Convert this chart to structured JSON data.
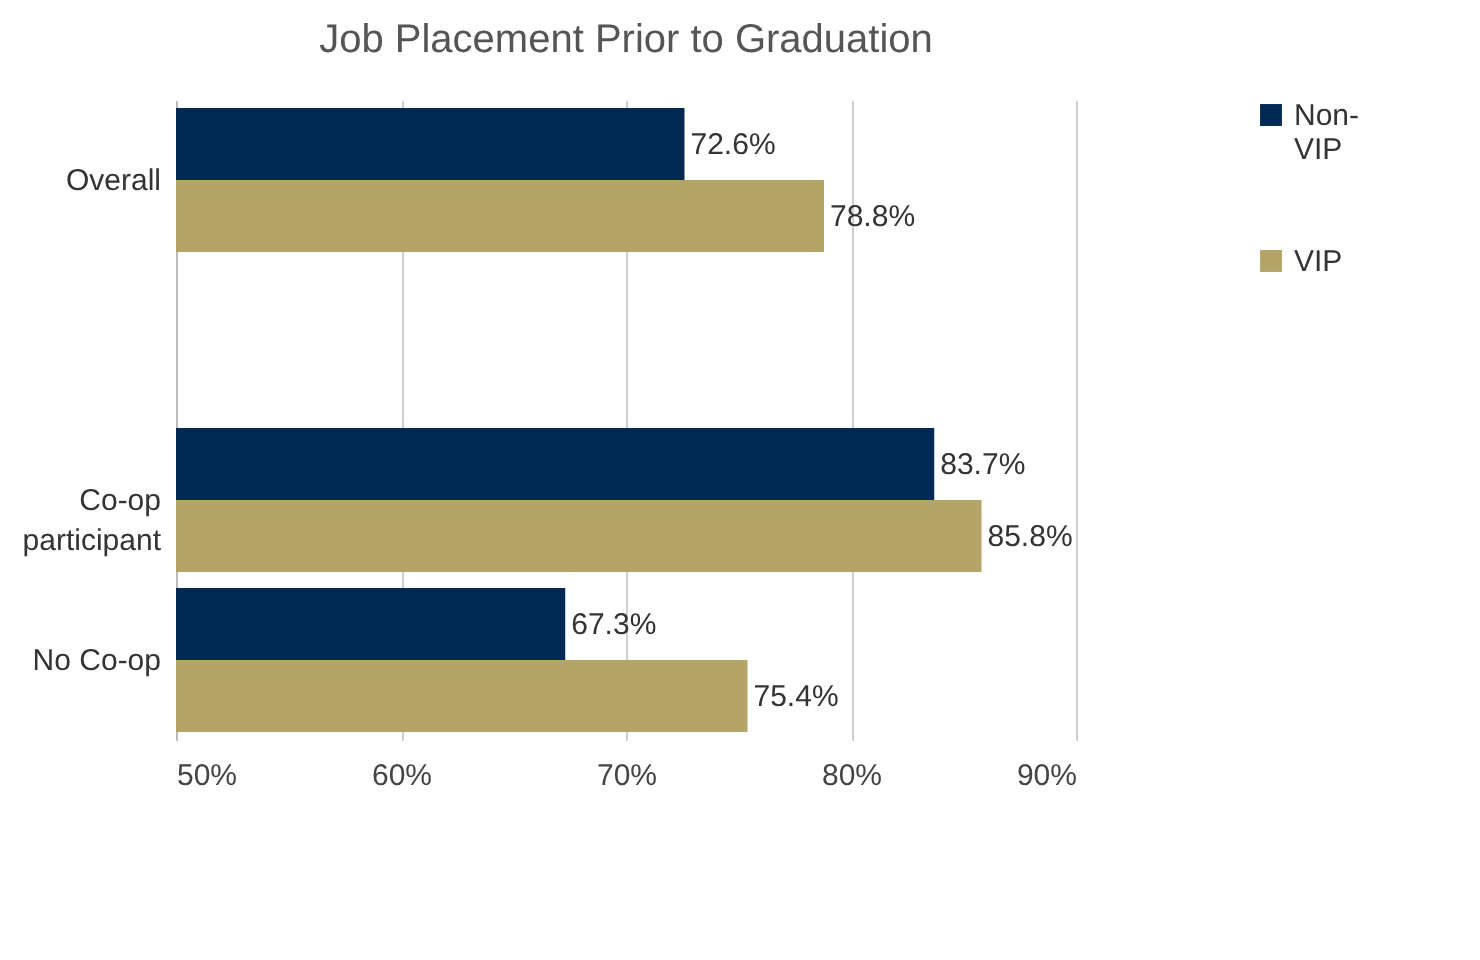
{
  "chart_data": {
    "type": "bar",
    "orientation": "horizontal",
    "title": "Job Placement Prior to Graduation",
    "categories": [
      "Overall",
      null,
      "Co-op participant",
      "No Co-op"
    ],
    "series": [
      {
        "name": "Non-VIP",
        "color": "#002a54",
        "values": [
          72.6,
          null,
          83.7,
          67.3
        ],
        "value_labels": [
          "72.6%",
          null,
          "83.7%",
          "67.3%"
        ]
      },
      {
        "name": "VIP",
        "color": "#b4a468",
        "values": [
          78.8,
          null,
          85.8,
          75.4
        ],
        "value_labels": [
          "78.8%",
          null,
          "85.8%",
          "75.4%"
        ]
      }
    ],
    "xlim": [
      50,
      90
    ],
    "xticks": [
      {
        "value": 50,
        "label": "50%"
      },
      {
        "value": 60,
        "label": "60%"
      },
      {
        "value": 70,
        "label": "70%"
      },
      {
        "value": 80,
        "label": "80%"
      },
      {
        "value": 90,
        "label": "90%"
      }
    ],
    "grid": "x",
    "legend": "right"
  }
}
